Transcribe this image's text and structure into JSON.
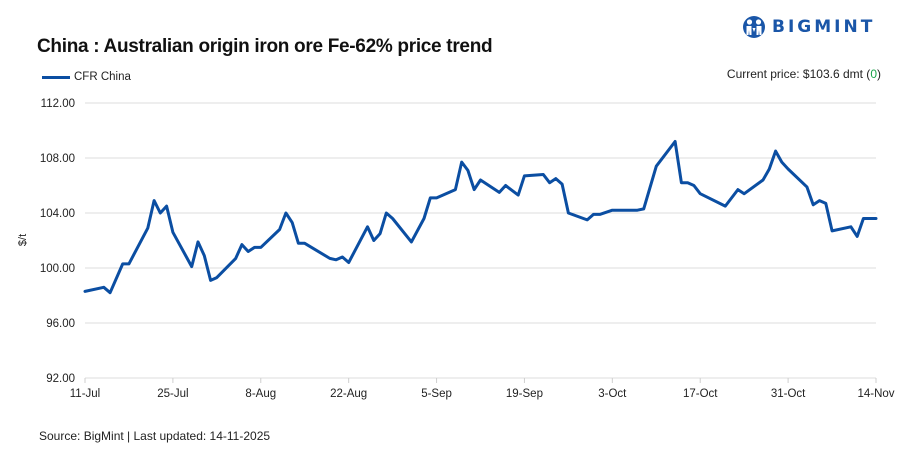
{
  "header": {
    "brand": "BIGMINT",
    "brand_color": "#1a56a8",
    "title": "China : Australian origin iron ore Fe-62% price trend"
  },
  "legend": {
    "series_label": "CFR China",
    "series_color": "#0b4ea2"
  },
  "current_price": {
    "label": "Current price: $103.6 dmt (",
    "change": "0",
    "close": ")",
    "change_color": "#1aa34a"
  },
  "footer": {
    "source": "Source: BigMint | Last updated: 14-11-2025"
  },
  "chart_data": {
    "type": "line",
    "title": "China : Australian origin iron ore Fe-62% price trend",
    "xlabel": "",
    "ylabel": "$/t",
    "ylim": [
      92,
      112
    ],
    "yticks": [
      "112.00",
      "108.00",
      "104.00",
      "100.00",
      "96.00",
      "92.00"
    ],
    "xticks": [
      "11-Jul",
      "25-Jul",
      "8-Aug",
      "22-Aug",
      "5-Sep",
      "19-Sep",
      "3-Oct",
      "17-Oct",
      "31-Oct",
      "14-Nov"
    ],
    "grid": "horizontal",
    "legend_position": "top-left",
    "series": [
      {
        "name": "CFR China",
        "color": "#0b4ea2",
        "points": [
          {
            "date": "11-Jul",
            "value": 98.3
          },
          {
            "date": "14-Jul",
            "value": 98.6
          },
          {
            "date": "15-Jul",
            "value": 98.2
          },
          {
            "date": "17-Jul",
            "value": 100.3
          },
          {
            "date": "18-Jul",
            "value": 100.3
          },
          {
            "date": "21-Jul",
            "value": 102.9
          },
          {
            "date": "22-Jul",
            "value": 104.9
          },
          {
            "date": "23-Jul",
            "value": 104.0
          },
          {
            "date": "24-Jul",
            "value": 104.5
          },
          {
            "date": "25-Jul",
            "value": 102.6
          },
          {
            "date": "28-Jul",
            "value": 100.1
          },
          {
            "date": "29-Jul",
            "value": 101.9
          },
          {
            "date": "30-Jul",
            "value": 100.9
          },
          {
            "date": "31-Jul",
            "value": 99.1
          },
          {
            "date": "1-Aug",
            "value": 99.3
          },
          {
            "date": "4-Aug",
            "value": 100.7
          },
          {
            "date": "5-Aug",
            "value": 101.7
          },
          {
            "date": "6-Aug",
            "value": 101.2
          },
          {
            "date": "7-Aug",
            "value": 101.5
          },
          {
            "date": "8-Aug",
            "value": 101.5
          },
          {
            "date": "11-Aug",
            "value": 102.8
          },
          {
            "date": "12-Aug",
            "value": 104.0
          },
          {
            "date": "13-Aug",
            "value": 103.3
          },
          {
            "date": "14-Aug",
            "value": 101.8
          },
          {
            "date": "15-Aug",
            "value": 101.8
          },
          {
            "date": "19-Aug",
            "value": 100.7
          },
          {
            "date": "20-Aug",
            "value": 100.6
          },
          {
            "date": "21-Aug",
            "value": 100.8
          },
          {
            "date": "22-Aug",
            "value": 100.4
          },
          {
            "date": "25-Aug",
            "value": 103.0
          },
          {
            "date": "26-Aug",
            "value": 102.0
          },
          {
            "date": "27-Aug",
            "value": 102.5
          },
          {
            "date": "28-Aug",
            "value": 104.0
          },
          {
            "date": "29-Aug",
            "value": 103.6
          },
          {
            "date": "1-Sep",
            "value": 101.9
          },
          {
            "date": "3-Sep",
            "value": 103.6
          },
          {
            "date": "4-Sep",
            "value": 105.1
          },
          {
            "date": "5-Sep",
            "value": 105.1
          },
          {
            "date": "8-Sep",
            "value": 105.7
          },
          {
            "date": "9-Sep",
            "value": 107.7
          },
          {
            "date": "10-Sep",
            "value": 107.1
          },
          {
            "date": "11-Sep",
            "value": 105.7
          },
          {
            "date": "12-Sep",
            "value": 106.4
          },
          {
            "date": "15-Sep",
            "value": 105.5
          },
          {
            "date": "16-Sep",
            "value": 106.0
          },
          {
            "date": "18-Sep",
            "value": 105.3
          },
          {
            "date": "19-Sep",
            "value": 106.7
          },
          {
            "date": "22-Sep",
            "value": 106.8
          },
          {
            "date": "23-Sep",
            "value": 106.2
          },
          {
            "date": "24-Sep",
            "value": 106.5
          },
          {
            "date": "25-Sep",
            "value": 106.1
          },
          {
            "date": "26-Sep",
            "value": 104.0
          },
          {
            "date": "29-Sep",
            "value": 103.5
          },
          {
            "date": "30-Sep",
            "value": 103.9
          },
          {
            "date": "1-Oct",
            "value": 103.9
          },
          {
            "date": "3-Oct",
            "value": 104.2
          },
          {
            "date": "7-Oct",
            "value": 104.2
          },
          {
            "date": "8-Oct",
            "value": 104.3
          },
          {
            "date": "10-Oct",
            "value": 107.4
          },
          {
            "date": "13-Oct",
            "value": 109.2
          },
          {
            "date": "14-Oct",
            "value": 106.2
          },
          {
            "date": "15-Oct",
            "value": 106.2
          },
          {
            "date": "16-Oct",
            "value": 106.0
          },
          {
            "date": "17-Oct",
            "value": 105.4
          },
          {
            "date": "21-Oct",
            "value": 104.5
          },
          {
            "date": "23-Oct",
            "value": 105.7
          },
          {
            "date": "24-Oct",
            "value": 105.4
          },
          {
            "date": "27-Oct",
            "value": 106.4
          },
          {
            "date": "28-Oct",
            "value": 107.2
          },
          {
            "date": "29-Oct",
            "value": 108.5
          },
          {
            "date": "30-Oct",
            "value": 107.7
          },
          {
            "date": "31-Oct",
            "value": 107.2
          },
          {
            "date": "3-Nov",
            "value": 105.9
          },
          {
            "date": "4-Nov",
            "value": 104.6
          },
          {
            "date": "5-Nov",
            "value": 104.9
          },
          {
            "date": "6-Nov",
            "value": 104.7
          },
          {
            "date": "7-Nov",
            "value": 102.7
          },
          {
            "date": "10-Nov",
            "value": 103.0
          },
          {
            "date": "11-Nov",
            "value": 102.3
          },
          {
            "date": "12-Nov",
            "value": 103.6
          },
          {
            "date": "14-Nov",
            "value": 103.6
          }
        ]
      }
    ]
  }
}
